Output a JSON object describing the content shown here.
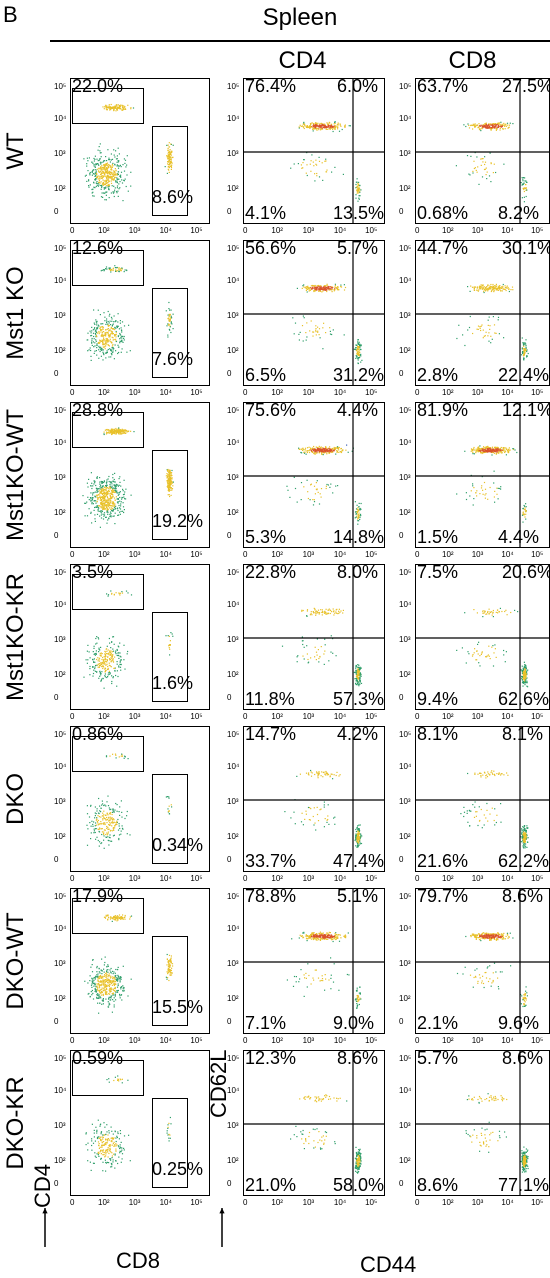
{
  "panel_letter": "B",
  "header": "Spleen",
  "col_headers": [
    "CD4",
    "CD8"
  ],
  "axis_labels": {
    "gate_y": "CD4",
    "gate_x": "CD8",
    "quad_y": "CD62L",
    "quad_x": "CD44"
  },
  "ticks": {
    "x": [
      "0",
      "10",
      "2",
      "10",
      "3",
      "10",
      "4",
      "10",
      "5"
    ],
    "y": [
      "10",
      "5",
      "10",
      "4",
      "10",
      "3",
      "10",
      "2",
      "0"
    ]
  },
  "rows": [
    {
      "label": "WT",
      "gate": [
        "22.0%",
        "8.6%"
      ],
      "cd4": [
        "76.4%",
        "6.0%",
        "4.1%",
        "13.5%"
      ],
      "cd8": [
        "63.7%",
        "27.5%",
        "0.68%",
        "8.2%"
      ]
    },
    {
      "label": "Mst1 KO",
      "gate": [
        "12.6%",
        "7.6%"
      ],
      "cd4": [
        "56.6%",
        "5.7%",
        "6.5%",
        "31.2%"
      ],
      "cd8": [
        "44.7%",
        "30.1%",
        "2.8%",
        "22.4%"
      ]
    },
    {
      "label": "Mst1KO-WT",
      "gate": [
        "28.8%",
        "19.2%"
      ],
      "cd4": [
        "75.6%",
        "4.4%",
        "5.3%",
        "14.8%"
      ],
      "cd8": [
        "81.9%",
        "12.1%",
        "1.5%",
        "4.4%"
      ]
    },
    {
      "label": "Mst1KO-KR",
      "gate": [
        "3.5%",
        "1.6%"
      ],
      "cd4": [
        "22.8%",
        "8.0%",
        "11.8%",
        "57.3%"
      ],
      "cd8": [
        "7.5%",
        "20.6%",
        "9.4%",
        "62.6%"
      ]
    },
    {
      "label": "DKO",
      "gate": [
        "0.86%",
        "0.34%"
      ],
      "cd4": [
        "14.7%",
        "4.2%",
        "33.7%",
        "47.4%"
      ],
      "cd8": [
        "8.1%",
        "8.1%",
        "21.6%",
        "62.2%"
      ]
    },
    {
      "label": "DKO-WT",
      "gate": [
        "17.9%",
        "15.5%"
      ],
      "cd4": [
        "78.8%",
        "5.1%",
        "7.1%",
        "9.0%"
      ],
      "cd8": [
        "79.7%",
        "8.6%",
        "2.1%",
        "9.6%"
      ]
    },
    {
      "label": "DKO-KR",
      "gate": [
        "0.59%",
        "0.25%"
      ],
      "cd4": [
        "12.3%",
        "8.6%",
        "21.0%",
        "58.0%"
      ],
      "cd8": [
        "5.7%",
        "8.6%",
        "8.6%",
        "77.1%"
      ]
    }
  ],
  "colors": {
    "dots_low": "#3f5fb0",
    "dots_mid": "#2f9e6a",
    "dots_high": "#e8c12a",
    "dots_peak": "#d9532b"
  }
}
